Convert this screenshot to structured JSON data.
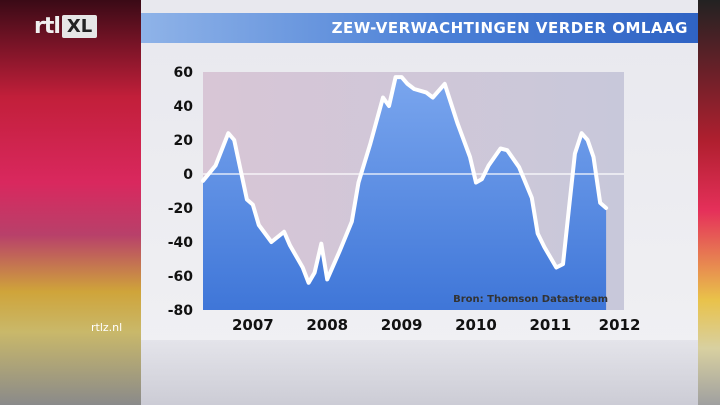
{
  "header": {
    "logo_text": "rtl",
    "logo_badge": "XL",
    "title": "ZEW-VERWACHTINGEN VERDER OMLAAG",
    "site": "rtlz.nl"
  },
  "colors": {
    "title_bar": "#4a7fd6",
    "area_fill": "#5a8de4",
    "line": "#ffffff",
    "plot_bg": "#c9c9d9"
  },
  "chart_data": {
    "type": "area",
    "title": "ZEW-VERWACHTINGEN VERDER OMLAAG",
    "xlabel": "",
    "ylabel": "",
    "ylim": [
      -80,
      60
    ],
    "yticks": [
      60,
      40,
      20,
      0,
      -20,
      -40,
      -60,
      -80
    ],
    "xtick_labels": [
      "2007",
      "2008",
      "2009",
      "2010",
      "2011",
      "2012"
    ],
    "xtick_positions": [
      2007.0,
      2008.0,
      2009.0,
      2010.0,
      2011.0,
      2011.93
    ],
    "xlim": [
      2006.33,
      2011.99
    ],
    "zero_line": true,
    "source": "Bron: Thomson Datastream",
    "series": [
      {
        "values": [
          [
            2006.33,
            -4
          ],
          [
            2006.5,
            5
          ],
          [
            2006.67,
            24
          ],
          [
            2006.75,
            20
          ],
          [
            2006.92,
            -15
          ],
          [
            2007.0,
            -18
          ],
          [
            2007.08,
            -30
          ],
          [
            2007.25,
            -40
          ],
          [
            2007.42,
            -34
          ],
          [
            2007.5,
            -42
          ],
          [
            2007.67,
            -55
          ],
          [
            2007.75,
            -64
          ],
          [
            2007.83,
            -58
          ],
          [
            2007.92,
            -41
          ],
          [
            2008.0,
            -62
          ],
          [
            2008.17,
            -45
          ],
          [
            2008.33,
            -28
          ],
          [
            2008.42,
            -5
          ],
          [
            2008.58,
            18
          ],
          [
            2008.75,
            45
          ],
          [
            2008.83,
            40
          ],
          [
            2008.92,
            57
          ],
          [
            2009.0,
            57
          ],
          [
            2009.08,
            53
          ],
          [
            2009.17,
            50
          ],
          [
            2009.33,
            48
          ],
          [
            2009.42,
            45
          ],
          [
            2009.58,
            53
          ],
          [
            2009.75,
            30
          ],
          [
            2009.92,
            10
          ],
          [
            2010.0,
            -5
          ],
          [
            2010.08,
            -3
          ],
          [
            2010.17,
            5
          ],
          [
            2010.33,
            15
          ],
          [
            2010.42,
            14
          ],
          [
            2010.58,
            4
          ],
          [
            2010.75,
            -14
          ],
          [
            2010.83,
            -35
          ],
          [
            2010.92,
            -43
          ],
          [
            2011.08,
            -55
          ],
          [
            2011.17,
            -53
          ],
          [
            2011.25,
            -20
          ],
          [
            2011.33,
            12
          ],
          [
            2011.42,
            24
          ],
          [
            2011.5,
            20
          ],
          [
            2011.58,
            10
          ],
          [
            2011.67,
            -17
          ],
          [
            2011.75,
            -20
          ]
        ]
      }
    ]
  }
}
